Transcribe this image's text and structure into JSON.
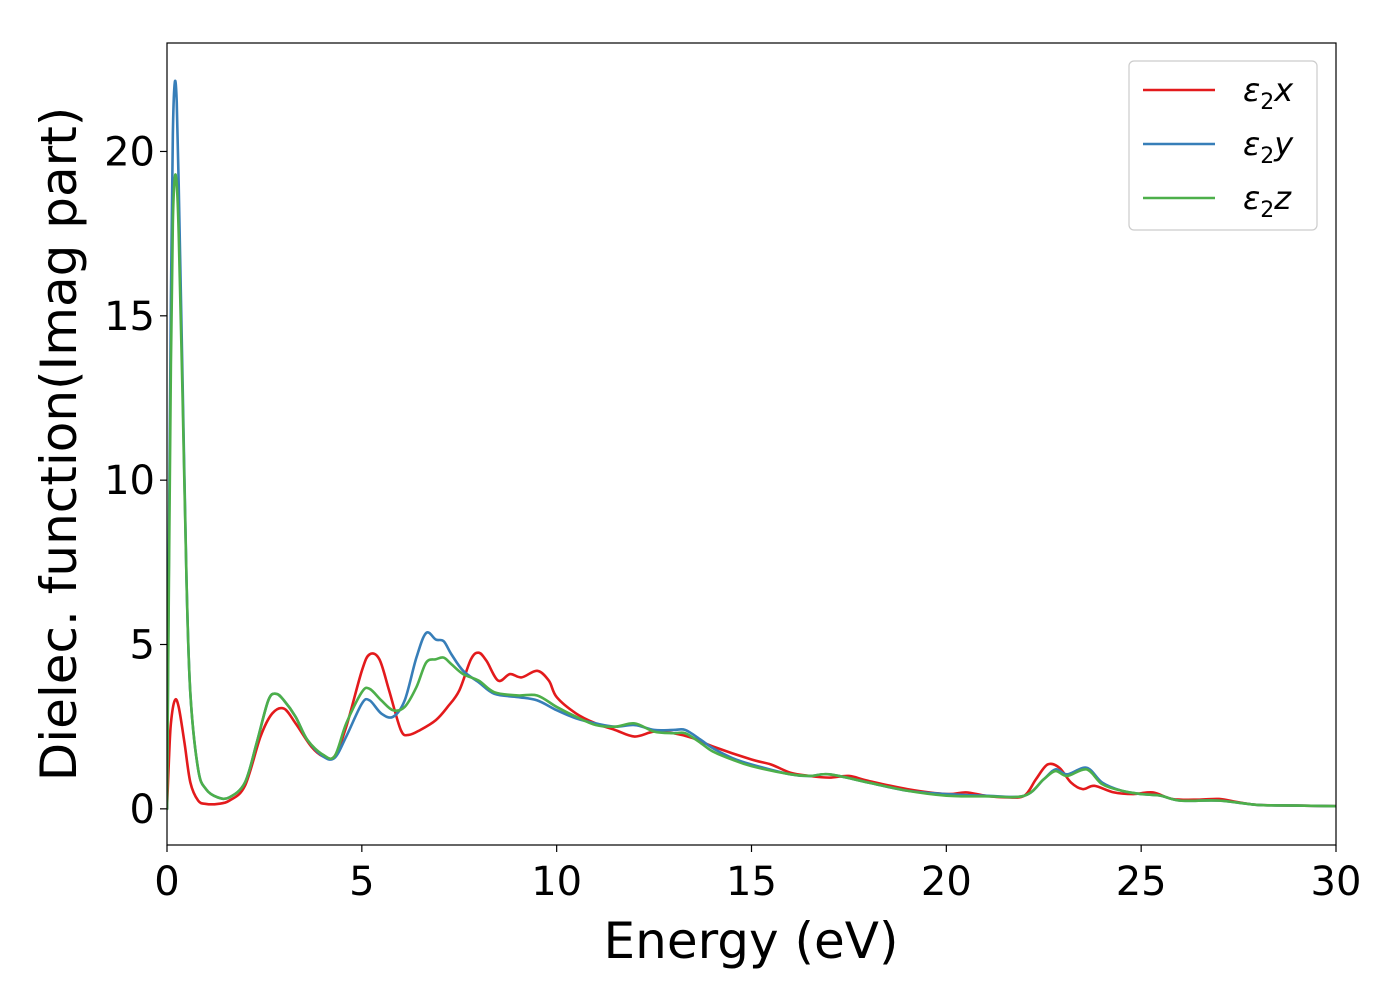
{
  "chart_data": {
    "type": "line",
    "xlabel": "Energy (eV)",
    "ylabel": "Dielec. function(Imag part)",
    "xlim": [
      0,
      30
    ],
    "ylim": [
      -1.1,
      23.3
    ],
    "xticks": [
      0,
      5,
      10,
      15,
      20,
      25,
      30
    ],
    "yticks": [
      0,
      5,
      10,
      15,
      20
    ],
    "grid": false,
    "legend_position": "top-right",
    "series": [
      {
        "name": "ε2x",
        "legend_base": "ε",
        "legend_sub": "2",
        "legend_tail": "x",
        "color": "#e31a1c",
        "points": [
          [
            0,
            0
          ],
          [
            0.05,
            1.5
          ],
          [
            0.1,
            2.6
          ],
          [
            0.2,
            3.3
          ],
          [
            0.3,
            3.1
          ],
          [
            0.45,
            2.0
          ],
          [
            0.6,
            0.8
          ],
          [
            0.8,
            0.25
          ],
          [
            1.0,
            0.15
          ],
          [
            1.3,
            0.15
          ],
          [
            1.6,
            0.25
          ],
          [
            2.0,
            0.7
          ],
          [
            2.4,
            2.2
          ],
          [
            2.7,
            2.9
          ],
          [
            3.0,
            3.05
          ],
          [
            3.3,
            2.6
          ],
          [
            3.7,
            1.9
          ],
          [
            4.0,
            1.6
          ],
          [
            4.3,
            1.6
          ],
          [
            4.6,
            2.5
          ],
          [
            5.0,
            4.2
          ],
          [
            5.2,
            4.7
          ],
          [
            5.45,
            4.55
          ],
          [
            5.7,
            3.6
          ],
          [
            6.0,
            2.4
          ],
          [
            6.2,
            2.25
          ],
          [
            6.5,
            2.4
          ],
          [
            6.9,
            2.7
          ],
          [
            7.2,
            3.1
          ],
          [
            7.5,
            3.6
          ],
          [
            7.8,
            4.55
          ],
          [
            8.0,
            4.75
          ],
          [
            8.2,
            4.5
          ],
          [
            8.5,
            3.9
          ],
          [
            8.8,
            4.1
          ],
          [
            9.1,
            4.0
          ],
          [
            9.5,
            4.2
          ],
          [
            9.8,
            3.9
          ],
          [
            10.0,
            3.4
          ],
          [
            10.5,
            2.9
          ],
          [
            11.0,
            2.6
          ],
          [
            11.5,
            2.4
          ],
          [
            12.0,
            2.2
          ],
          [
            12.5,
            2.35
          ],
          [
            13.0,
            2.3
          ],
          [
            13.5,
            2.15
          ],
          [
            14.0,
            1.9
          ],
          [
            15.0,
            1.5
          ],
          [
            15.5,
            1.35
          ],
          [
            16.0,
            1.1
          ],
          [
            16.5,
            1.0
          ],
          [
            17.0,
            0.95
          ],
          [
            17.5,
            1.0
          ],
          [
            18.0,
            0.85
          ],
          [
            19.0,
            0.6
          ],
          [
            20.0,
            0.45
          ],
          [
            20.5,
            0.5
          ],
          [
            21.0,
            0.4
          ],
          [
            21.5,
            0.35
          ],
          [
            22.0,
            0.4
          ],
          [
            22.3,
            0.9
          ],
          [
            22.6,
            1.35
          ],
          [
            22.9,
            1.25
          ],
          [
            23.2,
            0.8
          ],
          [
            23.5,
            0.6
          ],
          [
            23.8,
            0.7
          ],
          [
            24.3,
            0.5
          ],
          [
            24.8,
            0.45
          ],
          [
            25.3,
            0.5
          ],
          [
            25.8,
            0.3
          ],
          [
            26.5,
            0.28
          ],
          [
            27.0,
            0.3
          ],
          [
            27.5,
            0.2
          ],
          [
            28.0,
            0.12
          ],
          [
            29.0,
            0.1
          ],
          [
            30.0,
            0.08
          ]
        ]
      },
      {
        "name": "ε2y",
        "legend_base": "ε",
        "legend_sub": "2",
        "legend_tail": "y",
        "color": "#377eb8",
        "points": [
          [
            0,
            0
          ],
          [
            0.05,
            8.0
          ],
          [
            0.1,
            15.5
          ],
          [
            0.15,
            20.5
          ],
          [
            0.2,
            22.1
          ],
          [
            0.25,
            21.5
          ],
          [
            0.3,
            19.0
          ],
          [
            0.4,
            13.0
          ],
          [
            0.5,
            7.0
          ],
          [
            0.6,
            3.5
          ],
          [
            0.8,
            1.2
          ],
          [
            1.0,
            0.6
          ],
          [
            1.3,
            0.35
          ],
          [
            1.6,
            0.35
          ],
          [
            2.0,
            0.8
          ],
          [
            2.3,
            2.0
          ],
          [
            2.6,
            3.3
          ],
          [
            2.8,
            3.5
          ],
          [
            3.0,
            3.3
          ],
          [
            3.3,
            2.8
          ],
          [
            3.6,
            2.1
          ],
          [
            4.0,
            1.6
          ],
          [
            4.3,
            1.55
          ],
          [
            4.6,
            2.2
          ],
          [
            5.0,
            3.2
          ],
          [
            5.2,
            3.3
          ],
          [
            5.5,
            2.9
          ],
          [
            5.8,
            2.8
          ],
          [
            6.1,
            3.3
          ],
          [
            6.4,
            4.6
          ],
          [
            6.65,
            5.35
          ],
          [
            6.9,
            5.15
          ],
          [
            7.1,
            5.1
          ],
          [
            7.3,
            4.7
          ],
          [
            7.6,
            4.2
          ],
          [
            8.0,
            3.85
          ],
          [
            8.4,
            3.5
          ],
          [
            9.0,
            3.4
          ],
          [
            9.5,
            3.3
          ],
          [
            10.0,
            3.0
          ],
          [
            10.5,
            2.75
          ],
          [
            11.0,
            2.6
          ],
          [
            11.5,
            2.5
          ],
          [
            12.0,
            2.55
          ],
          [
            12.5,
            2.4
          ],
          [
            13.0,
            2.4
          ],
          [
            13.3,
            2.4
          ],
          [
            13.7,
            2.1
          ],
          [
            14.0,
            1.85
          ],
          [
            14.5,
            1.55
          ],
          [
            15.0,
            1.35
          ],
          [
            16.0,
            1.05
          ],
          [
            16.5,
            1.0
          ],
          [
            17.0,
            1.05
          ],
          [
            18.0,
            0.8
          ],
          [
            19.0,
            0.55
          ],
          [
            20.0,
            0.45
          ],
          [
            21.0,
            0.4
          ],
          [
            22.0,
            0.4
          ],
          [
            22.5,
            0.9
          ],
          [
            22.8,
            1.2
          ],
          [
            23.1,
            1.05
          ],
          [
            23.6,
            1.25
          ],
          [
            24.0,
            0.8
          ],
          [
            24.5,
            0.55
          ],
          [
            25.0,
            0.45
          ],
          [
            25.5,
            0.4
          ],
          [
            26.0,
            0.25
          ],
          [
            27.0,
            0.25
          ],
          [
            28.0,
            0.12
          ],
          [
            29.0,
            0.1
          ],
          [
            30.0,
            0.08
          ]
        ]
      },
      {
        "name": "ε2z",
        "legend_base": "ε",
        "legend_sub": "2",
        "legend_tail": "z",
        "color": "#4daf4a",
        "points": [
          [
            0,
            0
          ],
          [
            0.05,
            7.0
          ],
          [
            0.1,
            13.5
          ],
          [
            0.15,
            17.8
          ],
          [
            0.2,
            19.2
          ],
          [
            0.25,
            19.0
          ],
          [
            0.3,
            17.5
          ],
          [
            0.4,
            12.5
          ],
          [
            0.5,
            7.0
          ],
          [
            0.6,
            3.5
          ],
          [
            0.8,
            1.2
          ],
          [
            1.0,
            0.6
          ],
          [
            1.3,
            0.35
          ],
          [
            1.6,
            0.35
          ],
          [
            2.0,
            0.8
          ],
          [
            2.3,
            2.0
          ],
          [
            2.6,
            3.3
          ],
          [
            2.8,
            3.5
          ],
          [
            3.0,
            3.3
          ],
          [
            3.3,
            2.8
          ],
          [
            3.6,
            2.1
          ],
          [
            4.0,
            1.65
          ],
          [
            4.3,
            1.6
          ],
          [
            4.6,
            2.6
          ],
          [
            5.0,
            3.55
          ],
          [
            5.2,
            3.65
          ],
          [
            5.5,
            3.3
          ],
          [
            5.8,
            3.0
          ],
          [
            6.1,
            3.1
          ],
          [
            6.4,
            3.7
          ],
          [
            6.65,
            4.45
          ],
          [
            6.9,
            4.55
          ],
          [
            7.1,
            4.6
          ],
          [
            7.3,
            4.4
          ],
          [
            7.6,
            4.1
          ],
          [
            8.0,
            3.9
          ],
          [
            8.4,
            3.55
          ],
          [
            9.0,
            3.45
          ],
          [
            9.5,
            3.45
          ],
          [
            10.0,
            3.1
          ],
          [
            10.5,
            2.8
          ],
          [
            11.0,
            2.55
          ],
          [
            11.5,
            2.5
          ],
          [
            12.0,
            2.6
          ],
          [
            12.5,
            2.35
          ],
          [
            13.0,
            2.3
          ],
          [
            13.3,
            2.3
          ],
          [
            13.7,
            2.0
          ],
          [
            14.0,
            1.75
          ],
          [
            14.5,
            1.5
          ],
          [
            15.0,
            1.3
          ],
          [
            16.0,
            1.05
          ],
          [
            16.5,
            1.0
          ],
          [
            17.0,
            1.05
          ],
          [
            18.0,
            0.8
          ],
          [
            19.0,
            0.55
          ],
          [
            20.0,
            0.4
          ],
          [
            21.0,
            0.38
          ],
          [
            22.0,
            0.4
          ],
          [
            22.5,
            0.9
          ],
          [
            22.8,
            1.15
          ],
          [
            23.1,
            1.0
          ],
          [
            23.6,
            1.2
          ],
          [
            24.0,
            0.75
          ],
          [
            24.5,
            0.55
          ],
          [
            25.0,
            0.45
          ],
          [
            25.5,
            0.4
          ],
          [
            26.0,
            0.25
          ],
          [
            27.0,
            0.25
          ],
          [
            28.0,
            0.12
          ],
          [
            29.0,
            0.1
          ],
          [
            30.0,
            0.08
          ]
        ]
      }
    ]
  }
}
